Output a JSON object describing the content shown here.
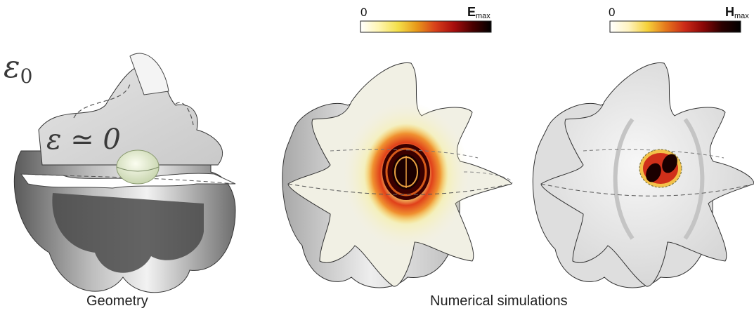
{
  "left_panel": {
    "outer_permittivity": "ε",
    "outer_permittivity_sub": "0",
    "inner_permittivity": "ε ≃ 0",
    "caption": "Geometry"
  },
  "right_panel": {
    "caption": "Numerical simulations"
  },
  "colorbars": [
    {
      "min_label": "0",
      "max_label": "E",
      "max_sub": "max",
      "colors": [
        "#ffffff",
        "#fff5b0",
        "#f4e04a",
        "#e89a1a",
        "#d8401a",
        "#a80d0d",
        "#4a0000",
        "#000000"
      ]
    },
    {
      "min_label": "0",
      "max_label": "H",
      "max_sub": "max",
      "colors": [
        "#ffffff",
        "#fff3c0",
        "#f6d23a",
        "#e5771c",
        "#cc2a18",
        "#8a0606",
        "#2a0000",
        "#000000"
      ]
    }
  ]
}
